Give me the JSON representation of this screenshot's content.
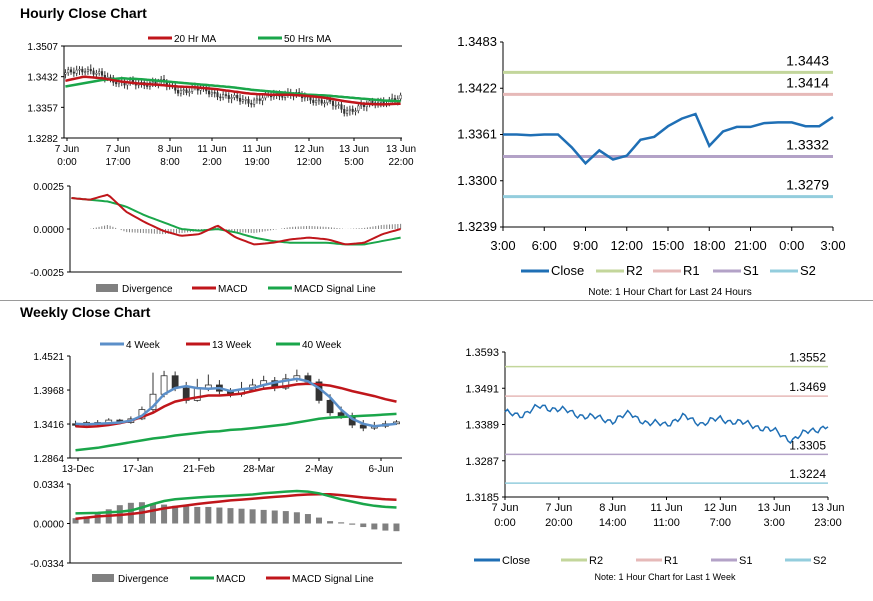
{
  "sections": {
    "hourly_title": "Hourly Close Chart",
    "weekly_title": "Weekly Close Chart"
  },
  "colors": {
    "ma_red": "#c0161b",
    "ma_green": "#1aa64a",
    "close_blue": "#1f6fb5",
    "week4_blue": "#5b8fc9",
    "r2": "#c3d69b",
    "r1": "#e6b9b8",
    "s1": "#b3a2c7",
    "s2": "#93cddd",
    "divergence": "#808080",
    "price_bar": "#333333"
  },
  "chart_data": [
    {
      "id": "hourly_price",
      "type": "candlestick",
      "legend": [
        "20 Hr MA",
        "50 Hrs MA"
      ],
      "ylim": [
        1.3282,
        1.3507
      ],
      "yticks": [
        "1.3507",
        "1.3432",
        "1.3357",
        "1.3282"
      ],
      "xticks": [
        [
          "7 Jun",
          "0:00"
        ],
        [
          "7 Jun",
          "17:00"
        ],
        [
          "8 Jun",
          "8:00"
        ],
        [
          "11 Jun",
          "2:00"
        ],
        [
          "11 Jun",
          "19:00"
        ],
        [
          "12 Jun",
          "12:00"
        ],
        [
          "13 Jun",
          "5:00"
        ],
        [
          "13 Jun",
          "22:00"
        ]
      ],
      "close_anchors": [
        1.3438,
        1.3452,
        1.3432,
        1.3418,
        1.3412,
        1.3422,
        1.3398,
        1.3402,
        1.3392,
        1.3378,
        1.3372,
        1.3385,
        1.3392,
        1.3378,
        1.3372,
        1.3348,
        1.336,
        1.3372,
        1.3378
      ],
      "ma20": [
        1.3422,
        1.3432,
        1.3428,
        1.342,
        1.3415,
        1.3412,
        1.3408,
        1.3406,
        1.3402,
        1.3396,
        1.339,
        1.3388,
        1.3388,
        1.3385,
        1.338,
        1.3372,
        1.3366,
        1.3364,
        1.3366
      ],
      "ma50": [
        1.3408,
        1.3416,
        1.3424,
        1.3428,
        1.3426,
        1.3422,
        1.3418,
        1.3414,
        1.341,
        1.3406,
        1.34,
        1.3396,
        1.3392,
        1.3388,
        1.3386,
        1.3382,
        1.3378,
        1.3374,
        1.3372
      ]
    },
    {
      "id": "hourly_macd",
      "type": "macd",
      "ylim": [
        -0.0025,
        0.0025
      ],
      "yticks": [
        "0.0025",
        "0.0000",
        "-0.0025"
      ],
      "legend": [
        "Divergence",
        "MACD",
        "MACD Signal Line"
      ],
      "macd": [
        0.0018,
        0.0017,
        0.002,
        0.001,
        0.0004,
        -0.0001,
        -0.0004,
        -0.0003,
        0.0002,
        -0.0005,
        -0.0009,
        -0.0008,
        -0.0006,
        -0.0005,
        -0.0006,
        -0.0009,
        -0.0008,
        -0.0003,
        0.0
      ],
      "signal": [
        0.0018,
        0.0017,
        0.0016,
        0.0013,
        0.0008,
        0.0004,
        0.0,
        -0.0001,
        0.0,
        -0.0002,
        -0.0005,
        -0.0007,
        -0.0008,
        -0.0008,
        -0.0008,
        -0.0009,
        -0.0009,
        -0.0007,
        -0.0005
      ]
    },
    {
      "id": "hourly_pivot",
      "type": "line",
      "ylim": [
        1.3239,
        1.3483
      ],
      "yticks": [
        "1.3483",
        "1.3422",
        "1.3361",
        "1.3300",
        "1.3239"
      ],
      "xticks": [
        "3:00",
        "6:00",
        "9:00",
        "12:00",
        "15:00",
        "18:00",
        "21:00",
        "0:00",
        "3:00"
      ],
      "close": [
        1.3361,
        1.3361,
        1.336,
        1.3361,
        1.3361,
        1.3344,
        1.3323,
        1.334,
        1.3328,
        1.3333,
        1.3354,
        1.3358,
        1.3372,
        1.3382,
        1.3388,
        1.3346,
        1.3365,
        1.3371,
        1.3371,
        1.3376,
        1.3377,
        1.3377,
        1.3372,
        1.3372,
        1.3384
      ],
      "levels": {
        "R2": 1.3443,
        "R1": 1.3414,
        "S1": 1.3332,
        "S2": 1.3279
      },
      "level_labels": [
        "1.3443",
        "1.3414",
        "1.3332",
        "1.3279"
      ],
      "legend": [
        "Close",
        "R2",
        "R1",
        "S1",
        "S2"
      ],
      "note": "Note: 1 Hour Chart for Last 24 Hours"
    },
    {
      "id": "weekly_price",
      "type": "candlestick",
      "legend": [
        "4 Week",
        "13 Week",
        "40 Week"
      ],
      "ylim": [
        1.2864,
        1.4521
      ],
      "yticks": [
        "1.4521",
        "1.3968",
        "1.3416",
        "1.2864"
      ],
      "xticks": [
        "13-Dec",
        "17-Jan",
        "21-Feb",
        "28-Mar",
        "2-May",
        "6-Jun"
      ],
      "open": [
        1.342,
        1.34,
        1.344,
        1.342,
        1.348,
        1.344,
        1.35,
        1.365,
        1.39,
        1.42,
        1.4,
        1.38,
        1.4,
        1.405,
        1.395,
        1.39,
        1.397,
        1.405,
        1.412,
        1.4,
        1.415,
        1.42,
        1.41,
        1.38,
        1.36,
        1.355,
        1.34,
        1.335,
        1.338,
        1.342
      ],
      "close": [
        1.34,
        1.344,
        1.342,
        1.348,
        1.344,
        1.35,
        1.365,
        1.39,
        1.42,
        1.4,
        1.38,
        1.4,
        1.405,
        1.395,
        1.39,
        1.397,
        1.405,
        1.412,
        1.4,
        1.415,
        1.42,
        1.41,
        1.38,
        1.36,
        1.355,
        1.34,
        1.335,
        1.338,
        1.342,
        1.345
      ],
      "high": [
        1.347,
        1.347,
        1.348,
        1.351,
        1.35,
        1.354,
        1.37,
        1.425,
        1.428,
        1.427,
        1.41,
        1.415,
        1.422,
        1.413,
        1.4,
        1.41,
        1.415,
        1.42,
        1.418,
        1.423,
        1.43,
        1.425,
        1.415,
        1.39,
        1.37,
        1.36,
        1.348,
        1.345,
        1.347,
        1.348
      ],
      "low": [
        1.337,
        1.336,
        1.338,
        1.339,
        1.341,
        1.342,
        1.348,
        1.362,
        1.385,
        1.395,
        1.375,
        1.378,
        1.395,
        1.39,
        1.385,
        1.386,
        1.395,
        1.4,
        1.395,
        1.397,
        1.41,
        1.405,
        1.375,
        1.355,
        1.35,
        1.335,
        1.33,
        1.332,
        1.335,
        1.34
      ],
      "wk4": [
        1.342,
        1.341,
        1.342,
        1.343,
        1.344,
        1.347,
        1.355,
        1.37,
        1.39,
        1.4,
        1.403,
        1.4,
        1.399,
        1.4,
        1.395,
        1.398,
        1.4,
        1.405,
        1.409,
        1.412,
        1.415,
        1.411,
        1.4,
        1.385,
        1.365,
        1.35,
        1.342,
        1.338,
        1.34,
        1.342
      ],
      "wk13": [
        1.338,
        1.337,
        1.338,
        1.34,
        1.343,
        1.347,
        1.353,
        1.36,
        1.37,
        1.378,
        1.382,
        1.385,
        1.388,
        1.388,
        1.389,
        1.391,
        1.395,
        1.399,
        1.401,
        1.403,
        1.406,
        1.407,
        1.406,
        1.404,
        1.4,
        1.395,
        1.391,
        1.387,
        1.382,
        1.378
      ],
      "wk40": [
        1.299,
        1.301,
        1.303,
        1.306,
        1.309,
        1.312,
        1.315,
        1.318,
        1.32,
        1.323,
        1.325,
        1.327,
        1.329,
        1.33,
        1.332,
        1.333,
        1.335,
        1.337,
        1.339,
        1.341,
        1.344,
        1.347,
        1.35,
        1.352,
        1.353,
        1.354,
        1.355,
        1.356,
        1.357,
        1.358
      ]
    },
    {
      "id": "weekly_macd",
      "type": "macd",
      "ylim": [
        -0.0334,
        0.0334
      ],
      "yticks": [
        "0.0334",
        "0.0000",
        "-0.0334"
      ],
      "legend": [
        "Divergence",
        "MACD",
        "MACD Signal Line"
      ],
      "macd": [
        0.0085,
        0.0088,
        0.009,
        0.0095,
        0.01,
        0.011,
        0.0135,
        0.0165,
        0.019,
        0.0205,
        0.0212,
        0.022,
        0.0226,
        0.023,
        0.0235,
        0.024,
        0.0245,
        0.0255,
        0.0262,
        0.027,
        0.0275,
        0.027,
        0.0255,
        0.023,
        0.0205,
        0.0185,
        0.0165,
        0.015,
        0.014,
        0.0135
      ],
      "signal": [
        0.004,
        0.005,
        0.006,
        0.0065,
        0.0072,
        0.008,
        0.0092,
        0.011,
        0.0128,
        0.014,
        0.0152,
        0.0165,
        0.0175,
        0.0185,
        0.0195,
        0.0202,
        0.021,
        0.0218,
        0.0225,
        0.0232,
        0.024,
        0.0245,
        0.0248,
        0.0247,
        0.024,
        0.023,
        0.022,
        0.0212,
        0.0205,
        0.02
      ],
      "divergence": [
        0.0045,
        0.006,
        0.0085,
        0.012,
        0.0155,
        0.0175,
        0.018,
        0.017,
        0.016,
        0.015,
        0.0145,
        0.014,
        0.014,
        0.0135,
        0.013,
        0.0125,
        0.012,
        0.0115,
        0.011,
        0.0105,
        0.0095,
        0.008,
        0.005,
        0.002,
        0.001,
        -0.001,
        -0.003,
        -0.005,
        -0.006,
        -0.0065
      ]
    },
    {
      "id": "weekly_pivot",
      "type": "line",
      "ylim": [
        1.3185,
        1.3593
      ],
      "yticks": [
        "1.3593",
        "1.3491",
        "1.3389",
        "1.3287",
        "1.3185"
      ],
      "xticks": [
        [
          "7 Jun",
          "0:00"
        ],
        [
          "7 Jun",
          "20:00"
        ],
        [
          "8 Jun",
          "14:00"
        ],
        [
          "11 Jun",
          "11:00"
        ],
        [
          "12 Jun",
          "7:00"
        ],
        [
          "13 Jun",
          "3:00"
        ],
        [
          "13 Jun",
          "23:00"
        ]
      ],
      "close_anchors": [
        1.342,
        1.3418,
        1.344,
        1.3432,
        1.3418,
        1.3408,
        1.34,
        1.342,
        1.339,
        1.3392,
        1.341,
        1.3392,
        1.3405,
        1.3395,
        1.3385,
        1.337,
        1.3345,
        1.3372,
        1.3384
      ],
      "levels": {
        "R2": 1.3552,
        "R1": 1.3469,
        "S1": 1.3305,
        "S2": 1.3224
      },
      "level_labels": [
        "1.3552",
        "1.3469",
        "1.3305",
        "1.3224"
      ],
      "legend": [
        "Close",
        "R2",
        "R1",
        "S1",
        "S2"
      ],
      "note": "Note: 1 Hour Chart for Last 1 Week"
    }
  ]
}
